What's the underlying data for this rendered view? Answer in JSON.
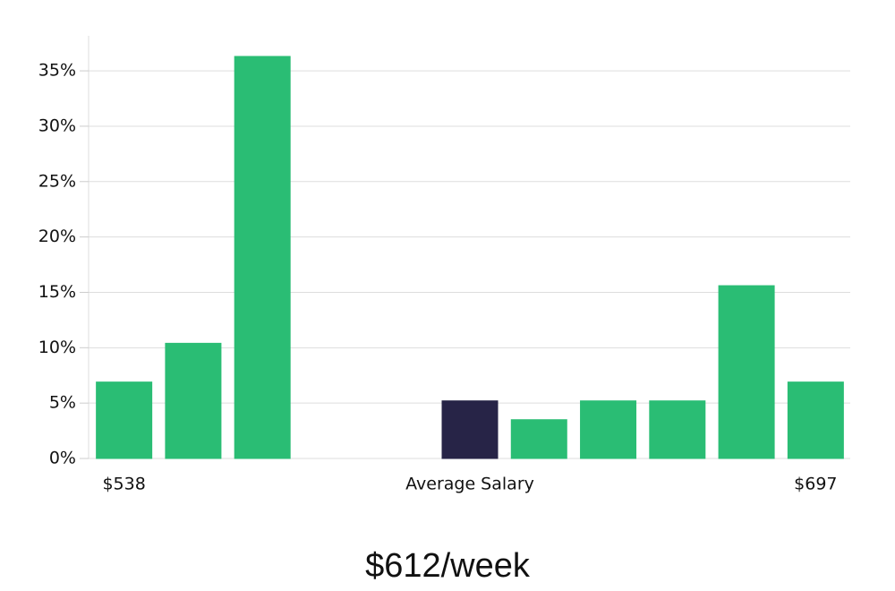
{
  "chart_data": {
    "type": "bar",
    "title": "$612/week",
    "categories": [
      "$538",
      null,
      null,
      null,
      null,
      "Average Salary",
      null,
      null,
      null,
      null,
      "$697"
    ],
    "values": [
      6.9,
      10.4,
      36.3,
      0,
      0,
      5.2,
      3.5,
      5.2,
      5.2,
      15.6,
      6.9
    ],
    "colors": [
      "#2abd74",
      "#2abd74",
      "#2abd74",
      "#2abd74",
      "#2abd74",
      "#272447",
      "#2abd74",
      "#2abd74",
      "#2abd74",
      "#2abd74",
      "#2abd74"
    ],
    "ylim": [
      0,
      38
    ],
    "yticks": [
      {
        "value": 0,
        "label": "0%"
      },
      {
        "value": 5,
        "label": "5%"
      },
      {
        "value": 10,
        "label": "10%"
      },
      {
        "value": 15,
        "label": "15%"
      },
      {
        "value": 20,
        "label": "20%"
      },
      {
        "value": 25,
        "label": "25%"
      },
      {
        "value": 30,
        "label": "30%"
      },
      {
        "value": 35,
        "label": "35%"
      }
    ],
    "grid": true
  }
}
